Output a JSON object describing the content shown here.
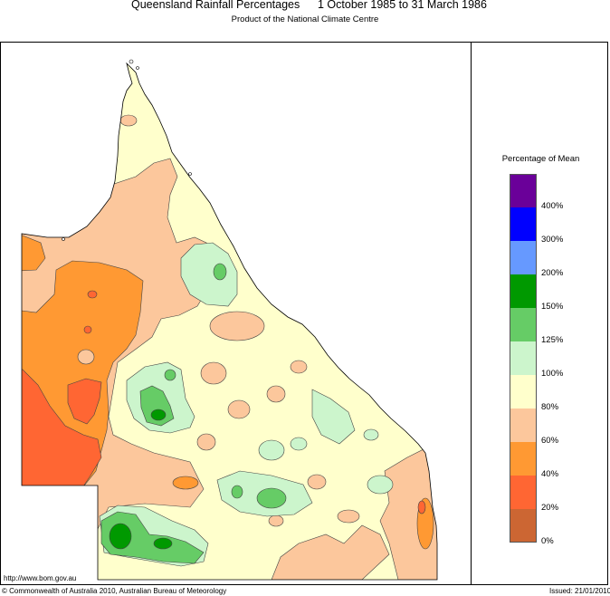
{
  "title": "Queensland Rainfall Percentages",
  "period": "1 October 1985 to 31 March 1986",
  "subtitle": "Product of the National Climate Centre",
  "legend": {
    "title": "Percentage of Mean",
    "bins": [
      {
        "color": "#6a0099"
      },
      {
        "color": "#0000ff"
      },
      {
        "color": "#6699ff"
      },
      {
        "color": "#009900"
      },
      {
        "color": "#66cc66"
      },
      {
        "color": "#ccf5cc"
      },
      {
        "color": "#ffffcc"
      },
      {
        "color": "#fcc79c"
      },
      {
        "color": "#ff9933"
      },
      {
        "color": "#ff6633"
      },
      {
        "color": "#cc6633"
      }
    ],
    "labels": [
      "400%",
      "300%",
      "200%",
      "150%",
      "125%",
      "100%",
      "80%",
      "60%",
      "40%",
      "20%",
      "0%"
    ]
  },
  "footer": {
    "url": "http://www.bom.gov.au",
    "copyright": "© Commonwealth of Australia 2010, Australian Bureau of Meteorology",
    "issued": "Issued: 21/01/2010"
  }
}
